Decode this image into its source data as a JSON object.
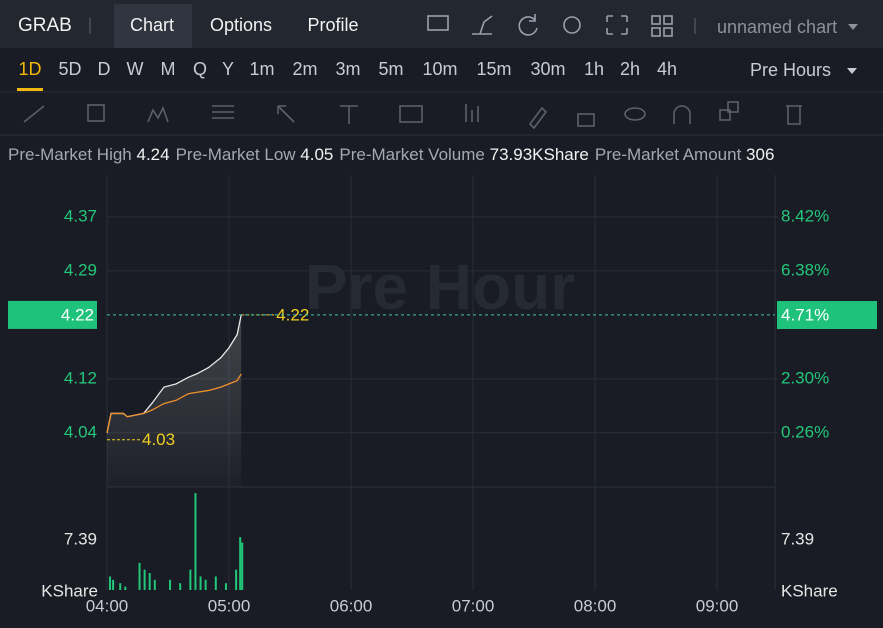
{
  "header": {
    "symbol": "GRAB",
    "tabs": [
      "Chart",
      "Options",
      "Profile"
    ],
    "chart_name": "unnamed chart"
  },
  "timeframes": [
    "1D",
    "5D",
    "D",
    "W",
    "M",
    "Q",
    "Y",
    "1m",
    "2m",
    "3m",
    "5m",
    "10m",
    "15m",
    "30m",
    "1h",
    "2h",
    "4h"
  ],
  "session": "Pre Hours",
  "stats": [
    {
      "label": "Pre-Market High",
      "value": "4.24"
    },
    {
      "label": "Pre-Market Low",
      "value": "4.05"
    },
    {
      "label": "Pre-Market Volume",
      "value": "73.93KShare"
    },
    {
      "label": "Pre-Market Amount",
      "value": "306"
    }
  ],
  "chart_data": [
    {
      "type": "line",
      "watermark": "Pre Hour",
      "x": [
        0,
        2,
        8,
        10,
        18,
        22,
        28,
        34,
        40,
        44,
        50,
        56,
        60,
        64,
        66
      ],
      "xlim": [
        0,
        328.5
      ],
      "xticks": [
        {
          "value": 0,
          "label": "04:00"
        },
        {
          "value": 60,
          "label": "05:00"
        },
        {
          "value": 120,
          "label": "06:00"
        },
        {
          "value": 180,
          "label": "07:00"
        },
        {
          "value": 240,
          "label": "08:00"
        },
        {
          "value": 300,
          "label": "09:00"
        }
      ],
      "series": [
        {
          "name": "Price",
          "color": "#e8e8e8",
          "values": [
            4.04,
            4.07,
            4.07,
            4.065,
            4.07,
            4.085,
            4.11,
            4.115,
            4.125,
            4.13,
            4.14,
            4.155,
            4.17,
            4.19,
            4.22
          ]
        },
        {
          "name": "Average",
          "color": "#f0902a",
          "values": [
            4.04,
            4.07,
            4.07,
            4.065,
            4.07,
            4.075,
            4.085,
            4.09,
            4.1,
            4.102,
            4.105,
            4.11,
            4.115,
            4.12,
            4.13
          ]
        }
      ],
      "ylim": [
        3.958,
        4.433
      ],
      "yticks": [
        {
          "value": 4.3693,
          "label": "4.37"
        },
        {
          "value": 4.287,
          "label": "4.29"
        },
        {
          "value": 4.1227,
          "label": "4.12"
        },
        {
          "value": 4.0405,
          "label": "4.04"
        }
      ],
      "y2lim": [
        -1.787,
        10.0
      ],
      "y2ticks": [
        {
          "value": 8.42,
          "label": "8.42%"
        },
        {
          "value": 6.38,
          "label": "6.38%"
        },
        {
          "value": 2.3,
          "label": "2.30%"
        },
        {
          "value": 0.26,
          "label": "0.26%"
        }
      ],
      "price_tags": [
        {
          "value": 4.22,
          "label": "4.22",
          "axis": "y"
        },
        {
          "value": 4.71,
          "label": "4.71%",
          "axis": "y2"
        }
      ],
      "annotations": [
        {
          "value": 4.22,
          "label": "4.22"
        },
        {
          "value": 4.03,
          "label": "4.03"
        }
      ],
      "grid": true
    },
    {
      "type": "bar",
      "y_label": "KShare",
      "color": "#22c77a",
      "x": [
        1.5,
        3,
        6.5,
        9,
        16,
        18.5,
        21,
        23.5,
        31,
        36,
        41,
        43.5,
        46,
        48.5,
        53.5,
        58.5,
        63.5,
        65.5,
        66.5
      ],
      "values": [
        2,
        1.5,
        1,
        0.5,
        4,
        3,
        2.5,
        1.5,
        1.5,
        1,
        3,
        14.3,
        2,
        1.5,
        2,
        1,
        3,
        7.8,
        7
      ],
      "ylim": [
        0,
        15.2
      ],
      "yticks": [
        {
          "value": 7.39,
          "label": "7.39"
        }
      ]
    }
  ]
}
